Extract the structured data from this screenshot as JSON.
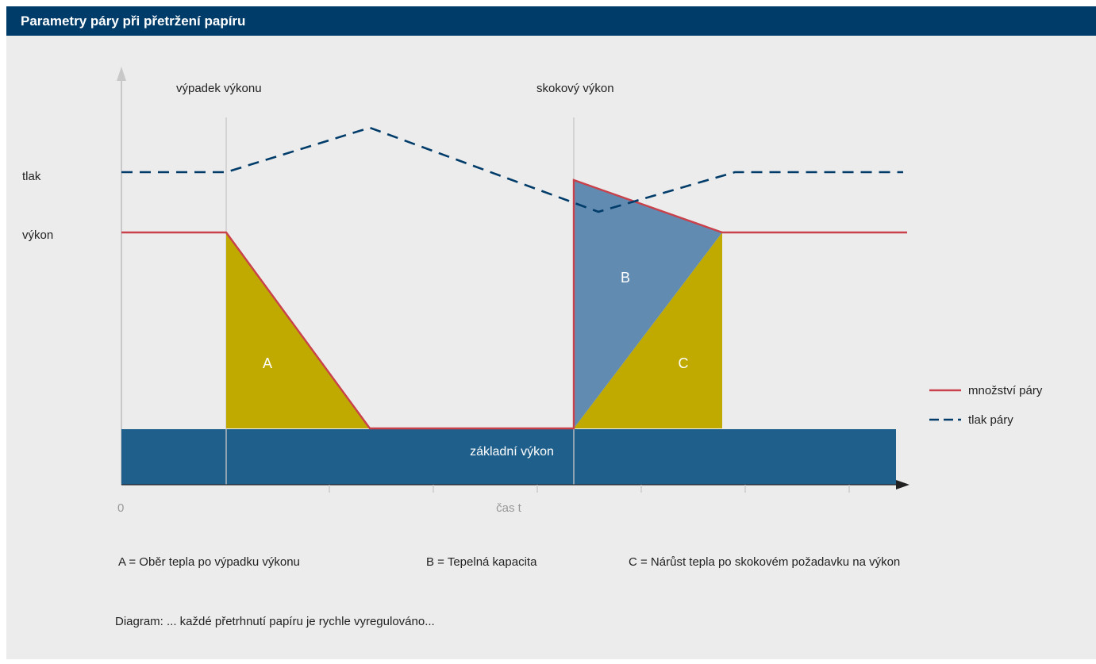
{
  "title": "Parametry páry při přetržení papíru",
  "annotations": {
    "drop_label": "výpadek výkonu",
    "jump_label": "skokový výkon",
    "y_label_pressure": "tlak",
    "y_label_power": "výkon",
    "area_a": "A",
    "area_b": "B",
    "area_c": "C",
    "base_power": "základní výkon",
    "x_zero": "0",
    "x_axis": "čas t"
  },
  "legend": {
    "steam_amount": "množství páry",
    "steam_pressure": "tlak páry"
  },
  "captions": {
    "a": "A = Oběr tepla po výpadku výkonu",
    "b": "B = Tepelná kapacita",
    "c": "C = Nárůst tepla po skokovém požadavku na výkon"
  },
  "footer": "Diagram: ... každé přetrhnutí papíru je rychle vyregulováno...",
  "colors": {
    "header": "#003c6a",
    "background": "#ececec",
    "steam_amount_line": "#c9414a",
    "steam_pressure_line": "#003c6a",
    "area_a_c": "#c1aa00",
    "area_b": "#628bb2",
    "base_power": "#1f5f8b",
    "axis": "#c8c8c8"
  }
}
